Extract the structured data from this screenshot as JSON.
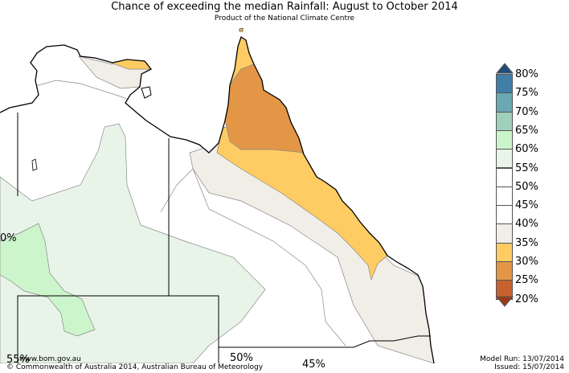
{
  "title": "Chance of exceeding the median Rainfall: August to October 2014",
  "subtitle": "Product of the National Climate Centre",
  "legend": {
    "items": [
      {
        "label": "80%",
        "color": "#2e5d8c"
      },
      {
        "label": "75%",
        "color": "#3f7fa6"
      },
      {
        "label": "70%",
        "color": "#6aa8b2"
      },
      {
        "label": "65%",
        "color": "#9fd0be"
      },
      {
        "label": "60%",
        "color": "#ccf5cc"
      },
      {
        "label": "55%",
        "color": "#e9f4e9"
      },
      {
        "label": "50%",
        "color": "#ffffff"
      },
      {
        "label": "45%",
        "color": "#ffffff"
      },
      {
        "label": "40%",
        "color": "#f1ede7"
      },
      {
        "label": "35%",
        "color": "#fecc62"
      },
      {
        "label": "30%",
        "color": "#e39646"
      },
      {
        "label": "25%",
        "color": "#c8612d"
      },
      {
        "label": "20%",
        "color": "#a8421d"
      }
    ]
  },
  "map_labels": {
    "left_partial": "0%",
    "bottom_left_partial": "55%",
    "bottom_center": "50%",
    "bottom_partial": "45%"
  },
  "footer": {
    "website": "www.bom.gov.au",
    "copyright": "©  Commonwealth of Australia 2014, Australian Bureau of Meteorology",
    "model_run": "Model Run: 13/07/2014",
    "issued": "Issued: 15/07/2014"
  },
  "colors": {
    "prob_30_35": "#e39646",
    "prob_35_40": "#fecc62",
    "prob_40_45": "#f1ede7",
    "prob_55_60": "#e9f4e9",
    "prob_60_65": "#ccf5cc"
  }
}
